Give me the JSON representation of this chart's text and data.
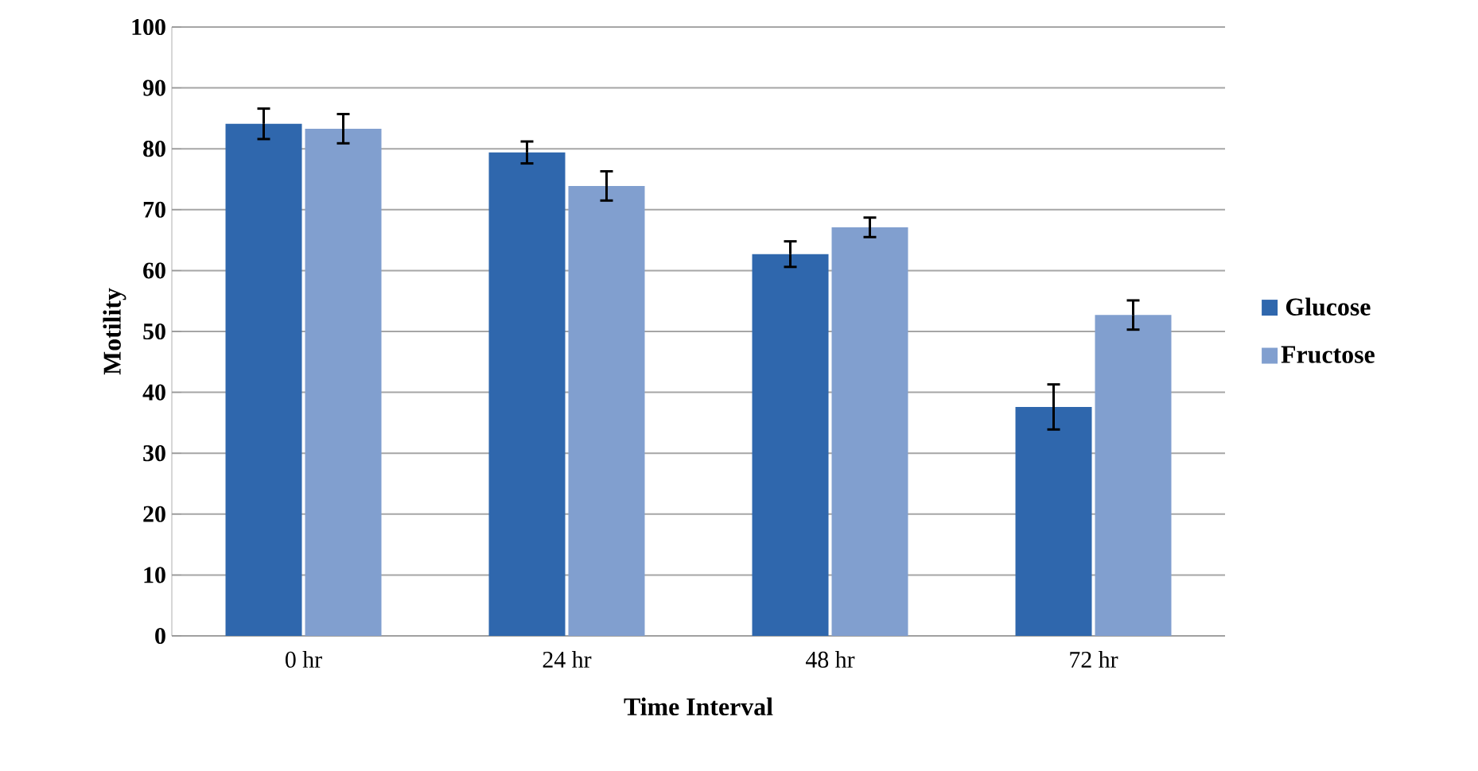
{
  "chart_data": {
    "type": "bar",
    "xlabel": "Time Interval",
    "ylabel": "Motility",
    "categories": [
      "0 hr",
      "24 hr",
      "48 hr",
      "72 hr"
    ],
    "series": [
      {
        "name": "Glucose",
        "color": "#2f67ad",
        "values": [
          84.1,
          79.4,
          62.7,
          37.6
        ],
        "errors": [
          2.5,
          1.8,
          2.1,
          3.7
        ]
      },
      {
        "name": "Fructose",
        "color": "#819fcf",
        "values": [
          83.3,
          73.9,
          67.1,
          52.7
        ],
        "errors": [
          2.4,
          2.4,
          1.6,
          2.4
        ]
      }
    ],
    "ylim": [
      0,
      100
    ],
    "yticks": [
      0,
      10,
      20,
      30,
      40,
      50,
      60,
      70,
      80,
      90,
      100
    ],
    "grid": "y",
    "legend": "right"
  }
}
